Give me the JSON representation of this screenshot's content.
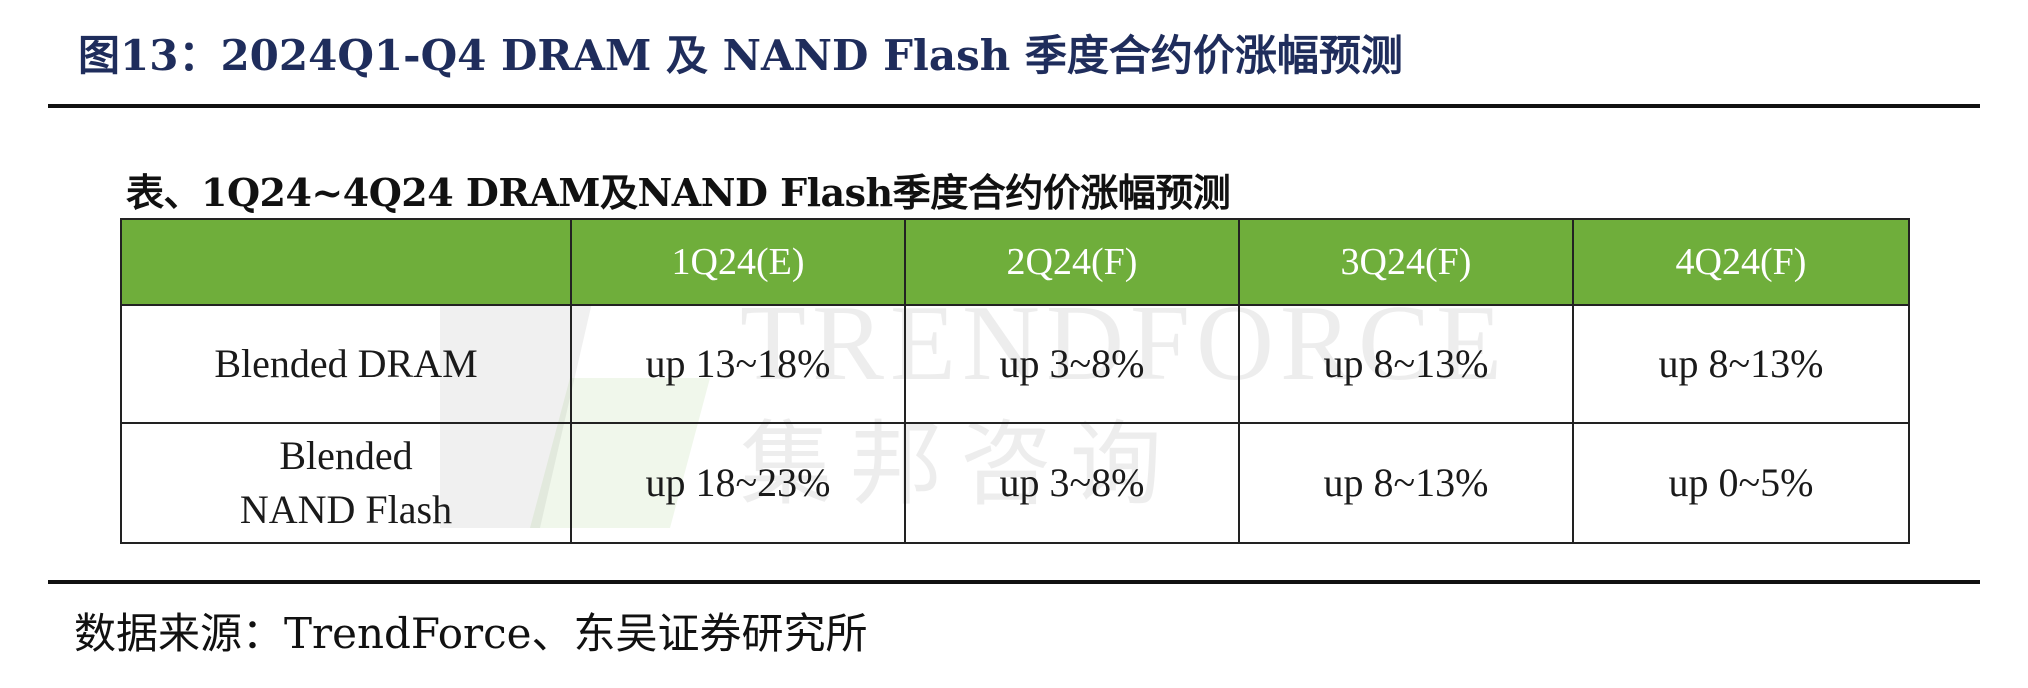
{
  "figure_title": "图13：2024Q1-Q4 DRAM 及 NAND Flash 季度合约价涨幅预测",
  "table_caption": "表、1Q24~4Q24 DRAM及NAND Flash季度合约价涨幅预测",
  "watermark": {
    "english": "TRENDFORCE",
    "chinese": "集邦咨询"
  },
  "table": {
    "headers": [
      "",
      "1Q24(E)",
      "2Q24(F)",
      "3Q24(F)",
      "4Q24(F)"
    ],
    "rows": [
      {
        "label": "Blended DRAM",
        "cells": [
          "up 13~18%",
          "up 3~8%",
          "up 8~13%",
          "up 8~13%"
        ]
      },
      {
        "label": "Blended\nNAND Flash",
        "cells": [
          "up 18~23%",
          "up 3~8%",
          "up 8~13%",
          "up 0~5%"
        ]
      }
    ]
  },
  "source": "数据来源：TrendForce、东吴证券研究所",
  "colors": {
    "header_bg": "#6fae3b",
    "title": "#1f2d5c"
  }
}
